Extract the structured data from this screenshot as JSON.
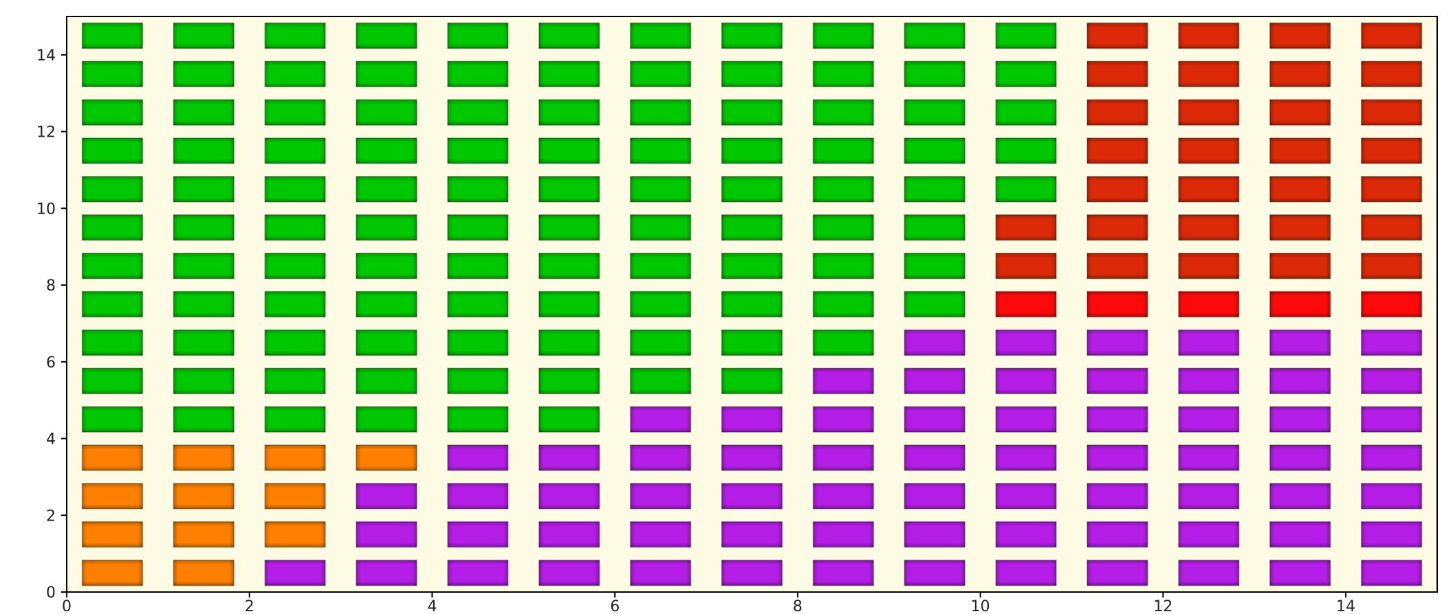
{
  "chart_data": {
    "type": "heatmap",
    "title": "",
    "xlabel": "",
    "ylabel": "",
    "xlim": [
      0,
      15
    ],
    "ylim": [
      0,
      15
    ],
    "grid": false,
    "x_ticks": [
      0,
      2,
      4,
      6,
      8,
      10,
      12,
      14
    ],
    "y_ticks": [
      0,
      2,
      4,
      6,
      8,
      10,
      12,
      14
    ],
    "x_tick_labels": [
      "0",
      "2",
      "4",
      "6",
      "8",
      "10",
      "12",
      "14"
    ],
    "y_tick_labels": [
      "0",
      "2",
      "4",
      "6",
      "8",
      "10",
      "12",
      "14"
    ],
    "background_color": "#fdfbe4",
    "colors": {
      "orange": "#ff8000",
      "green": "#00c800",
      "purple": "#b41ee6",
      "red": "#ff0a0a",
      "darkred": "#dc2a08"
    },
    "legend": [],
    "cells_rows_top_to_bottom": [
      "GGGGGGGGGGGDDDD",
      "GGGGGGGGGGGDDDD",
      "GGGGGGGGGGGDDDD",
      "GGGGGGGGGGGDDDD",
      "GGGGGGGGGGGDDDD",
      "GGGGGGGGGGDDDDD",
      "GGGGGGGGGGDDDDD",
      "GGGGGGGGGGRRRRR",
      "GGGGGGGGGPPPPPP",
      "GGGGGGGGPPPPPPP",
      "GGGGGGPPPPPPPPP",
      "OOOOPPPPPPPPPPP",
      "OOOPPPPPPPPPPPP",
      "OOOPPPPPPPPPPPP",
      "OOPPPPPPPPPPPPP"
    ],
    "cell_key": {
      "G": "green",
      "D": "darkred",
      "R": "red",
      "P": "purple",
      "O": "orange"
    }
  }
}
